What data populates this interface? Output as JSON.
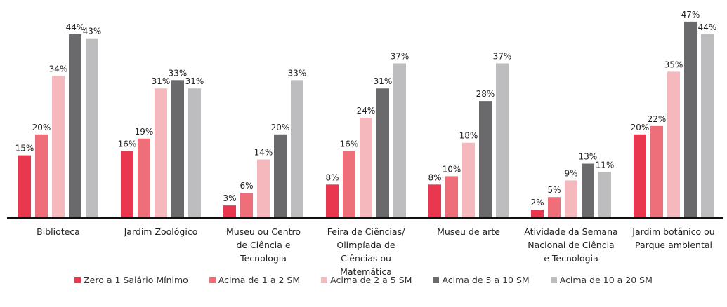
{
  "chart_data": {
    "type": "bar",
    "categories": [
      "Biblioteca",
      "Jardim Zoológico",
      "Museu ou Centro\nde Ciência e\nTecnologia",
      "Feira de Ciências/\nOlimpíada de\nCiências ou\nMatemática",
      "Museu de arte",
      "Atividade da Semana\nNacional de Ciência\ne Tecnologia",
      "Jardim botânico ou\nParque ambiental"
    ],
    "series": [
      {
        "name": "Zero a 1 Salário Mínimo",
        "color": "#e8374f",
        "values": [
          15,
          16,
          3,
          8,
          8,
          2,
          20
        ],
        "value_labels": [
          "15%",
          "16%",
          "3%",
          "8%",
          "8%",
          "2%",
          "20%"
        ]
      },
      {
        "name": "Acima de 1 a 2 SM",
        "color": "#ee6f7a",
        "values": [
          20,
          19,
          6,
          16,
          10,
          5,
          22
        ],
        "value_labels": [
          "20%",
          "19%",
          "6%",
          "16%",
          "10%",
          "5%",
          "22%"
        ]
      },
      {
        "name": "Acima de 2 a 5 SM",
        "color": "#f4b8bd",
        "values": [
          34,
          31,
          14,
          24,
          18,
          9,
          35
        ],
        "value_labels": [
          "34%",
          "31%",
          "14%",
          "24%",
          "18%",
          "9%",
          "35%"
        ]
      },
      {
        "name": "Acima de 5 a 10 SM",
        "color": "#6a6a6d",
        "values": [
          44,
          33,
          20,
          31,
          28,
          13,
          47
        ],
        "value_labels": [
          "44%",
          "33%",
          "20%",
          "31%",
          "28%",
          "13%",
          "47%"
        ]
      },
      {
        "name": "Acima de 10 a 20 SM",
        "color": "#bdbdbf",
        "values": [
          43,
          31,
          33,
          37,
          37,
          11,
          44
        ],
        "value_labels": [
          "43%",
          "31%",
          "33%",
          "37%",
          "37%",
          "11%",
          "44%"
        ]
      }
    ],
    "legend": "bottom"
  }
}
